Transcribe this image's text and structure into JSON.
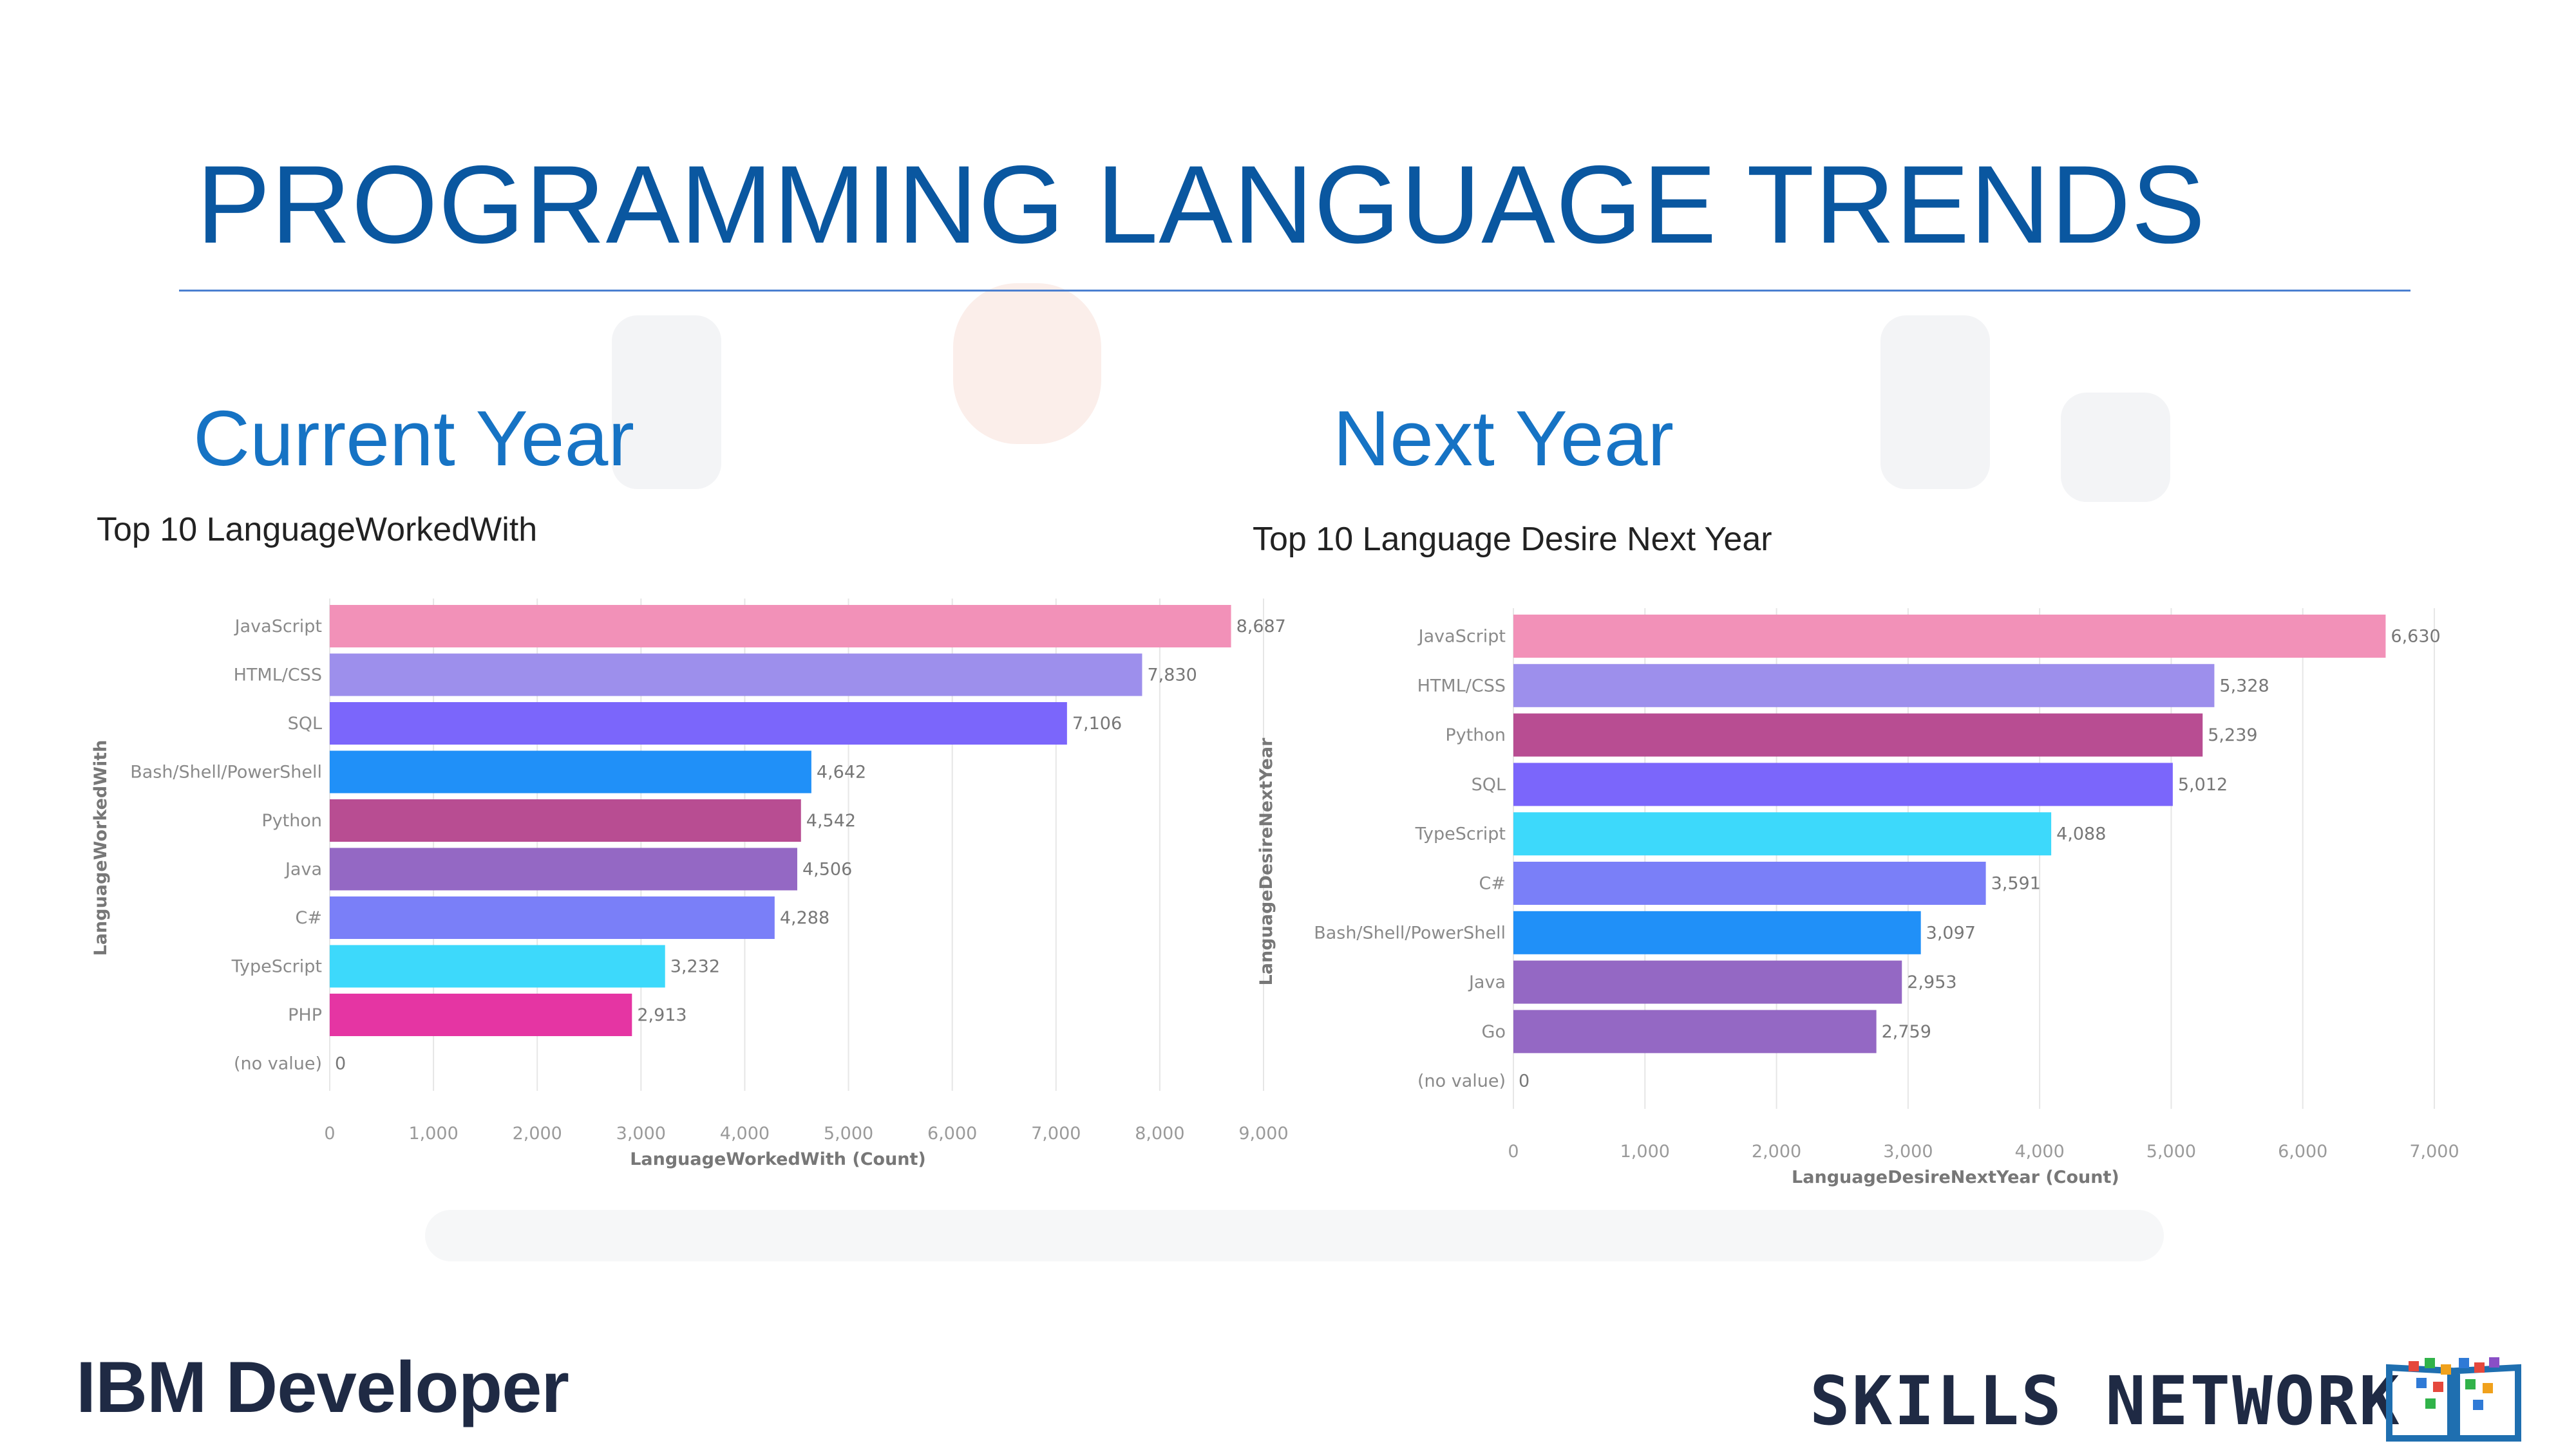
{
  "slide": {
    "title": "PROGRAMMING LANGUAGE TRENDS",
    "left_heading": "Current Year",
    "right_heading": "Next Year",
    "footer_left": "IBM Developer",
    "footer_right": "SKILLS NETWORK",
    "accent_color": "#0a57a0"
  },
  "chart_data": [
    {
      "type": "bar",
      "orientation": "horizontal",
      "title": "Top 10 LanguageWorkedWith",
      "xlabel": "LanguageWorkedWith (Count)",
      "ylabel": "LanguageWorkedWith",
      "categories": [
        "JavaScript",
        "HTML/CSS",
        "SQL",
        "Bash/Shell/PowerShell",
        "Python",
        "Java",
        "C#",
        "TypeScript",
        "PHP",
        "(no value)"
      ],
      "values": [
        8687,
        7830,
        7106,
        4642,
        4542,
        4506,
        4288,
        3232,
        2913,
        0
      ],
      "value_labels": [
        "8,687",
        "7,830",
        "7,106",
        "4,642",
        "4,542",
        "4,506",
        "4,288",
        "3,232",
        "2,913",
        "0"
      ],
      "colors": [
        "#f291b8",
        "#9d8fec",
        "#7b66fb",
        "#2090f8",
        "#b84d92",
        "#9468c4",
        "#7a7ff8",
        "#3dd9fb",
        "#e535a3",
        "#cccccc"
      ],
      "xlim": [
        0,
        9000
      ],
      "xticks": [
        0,
        1000,
        2000,
        3000,
        4000,
        5000,
        6000,
        7000,
        8000,
        9000
      ],
      "xtick_labels": [
        "0",
        "1,000",
        "2,000",
        "3,000",
        "4,000",
        "5,000",
        "6,000",
        "7,000",
        "8,000",
        "9,000"
      ],
      "grid": true
    },
    {
      "type": "bar",
      "orientation": "horizontal",
      "title": "Top 10 Language Desire Next Year",
      "xlabel": "LanguageDesireNextYear (Count)",
      "ylabel": "LanguageDesireNextYear",
      "categories": [
        "JavaScript",
        "HTML/CSS",
        "Python",
        "SQL",
        "TypeScript",
        "C#",
        "Bash/Shell/PowerShell",
        "Java",
        "Go",
        "(no value)"
      ],
      "values": [
        6630,
        5328,
        5239,
        5012,
        4088,
        3591,
        3097,
        2953,
        2759,
        0
      ],
      "value_labels": [
        "6,630",
        "5,328",
        "5,239",
        "5,012",
        "4,088",
        "3,591",
        "3,097",
        "2,953",
        "2,759",
        "0"
      ],
      "colors": [
        "#f291b8",
        "#9d8fec",
        "#b84d92",
        "#7b66fb",
        "#3dd9fb",
        "#7a7ff8",
        "#2090f8",
        "#9468c4",
        "#9468c4",
        "#cccccc"
      ],
      "xlim": [
        0,
        7000
      ],
      "xticks": [
        0,
        1000,
        2000,
        3000,
        4000,
        5000,
        6000,
        7000
      ],
      "xtick_labels": [
        "0",
        "1,000",
        "2,000",
        "3,000",
        "4,000",
        "5,000",
        "6,000",
        "7,000"
      ],
      "grid": true
    }
  ]
}
